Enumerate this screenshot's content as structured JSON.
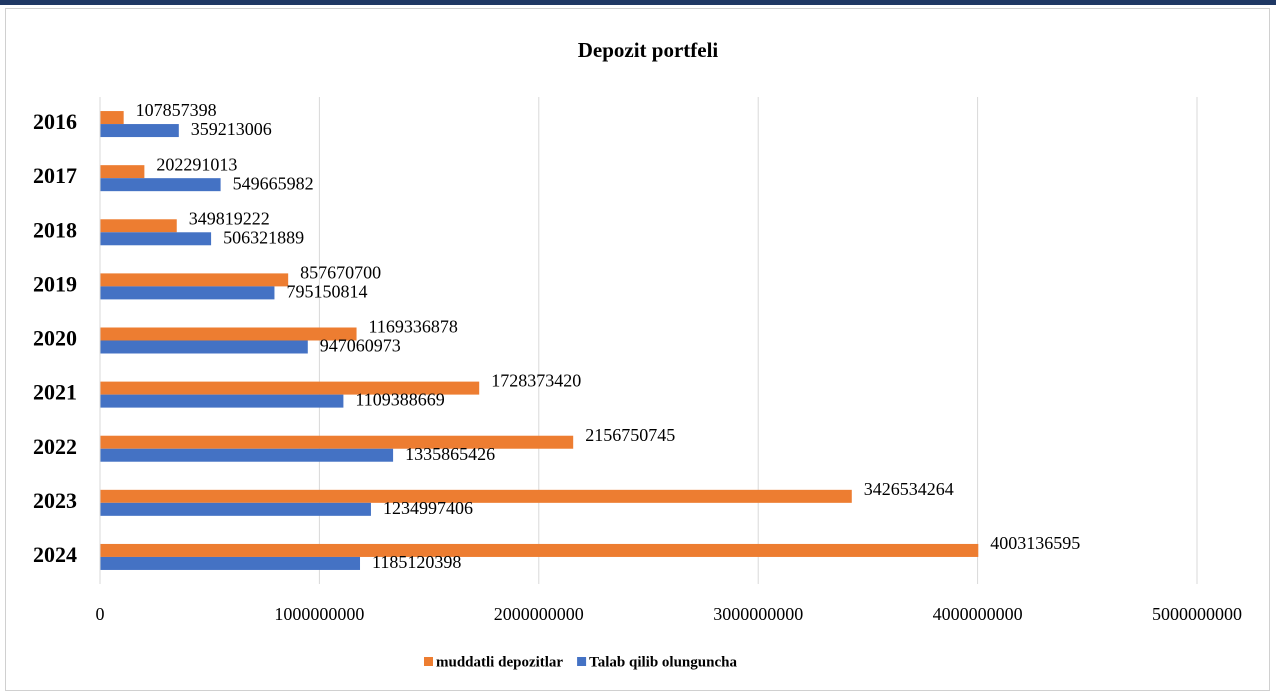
{
  "chart_data": {
    "type": "bar",
    "orientation": "horizontal",
    "title": "Depozit portfeli",
    "categories": [
      "2016",
      "2017",
      "2018",
      "2019",
      "2020",
      "2021",
      "2022",
      "2023",
      "2024"
    ],
    "series": [
      {
        "name": "muddatli depozitlar",
        "color": "#ed7d31",
        "values": [
          107857398,
          202291013,
          349819222,
          857670700,
          1169336878,
          1728373420,
          2156750745,
          3426534264,
          4003136595
        ]
      },
      {
        "name": "Talab qilib olunguncha",
        "color": "#4472c4",
        "values": [
          359213006,
          549665982,
          506321889,
          795150814,
          947060973,
          1109388669,
          1335865426,
          1234997406,
          1185120398
        ]
      }
    ],
    "xlim": [
      0,
      5000000000
    ],
    "xticks": [
      0,
      1000000000,
      2000000000,
      3000000000,
      4000000000,
      5000000000
    ],
    "grid": true,
    "legend": "bottom"
  }
}
